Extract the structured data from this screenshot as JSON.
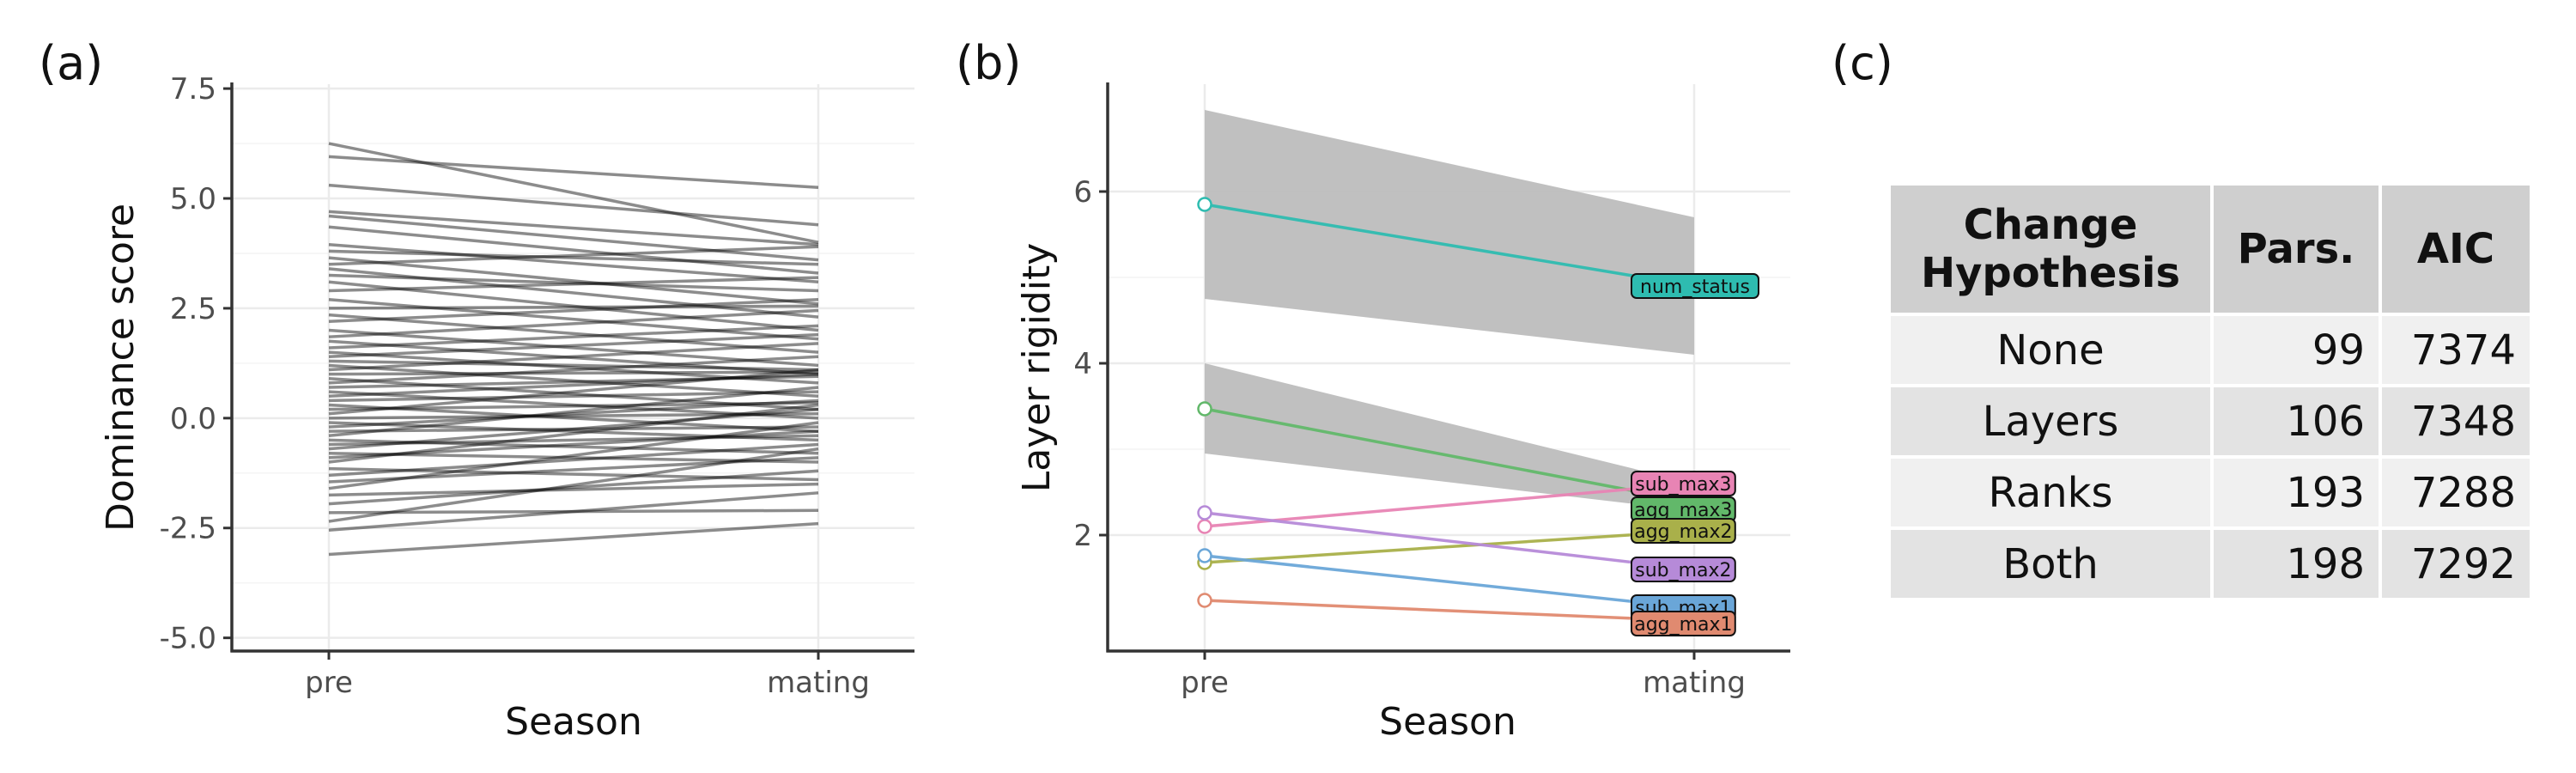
{
  "panel_labels": {
    "a": "(a)",
    "b": "(b)",
    "c": "(c)"
  },
  "chart_data": [
    {
      "type": "line",
      "panel": "(a)",
      "xlabel": "Season",
      "ylabel": "Dominance score",
      "categories": [
        "pre",
        "mating"
      ],
      "ylim": [
        -5.3,
        7.6
      ],
      "yticks": [
        -5.0,
        -2.5,
        0.0,
        2.5,
        5.0,
        7.5
      ],
      "ytick_labels": [
        "-5.0",
        "-2.5",
        "0.0",
        "2.5",
        "5.0",
        "7.5"
      ],
      "grid": true,
      "line_color": "#000000",
      "series": [
        {
          "values": [
            6.25,
            4.0
          ]
        },
        {
          "values": [
            5.95,
            5.25
          ]
        },
        {
          "values": [
            5.3,
            4.4
          ]
        },
        {
          "values": [
            4.7,
            3.95
          ]
        },
        {
          "values": [
            4.6,
            3.6
          ]
        },
        {
          "values": [
            4.35,
            3.3
          ]
        },
        {
          "values": [
            3.95,
            3.1
          ]
        },
        {
          "values": [
            3.8,
            3.5
          ]
        },
        {
          "values": [
            3.65,
            2.6
          ]
        },
        {
          "values": [
            3.5,
            3.9
          ]
        },
        {
          "values": [
            3.4,
            2.3
          ]
        },
        {
          "values": [
            3.25,
            2.9
          ]
        },
        {
          "values": [
            3.1,
            2.0
          ]
        },
        {
          "values": [
            2.9,
            3.2
          ]
        },
        {
          "values": [
            2.7,
            1.8
          ]
        },
        {
          "values": [
            2.5,
            2.55
          ]
        },
        {
          "values": [
            2.35,
            1.5
          ]
        },
        {
          "values": [
            2.2,
            2.7
          ]
        },
        {
          "values": [
            2.0,
            1.2
          ]
        },
        {
          "values": [
            1.85,
            2.45
          ]
        },
        {
          "values": [
            1.75,
            1.0
          ]
        },
        {
          "values": [
            1.6,
            2.1
          ]
        },
        {
          "values": [
            1.5,
            0.8
          ]
        },
        {
          "values": [
            1.4,
            1.9
          ]
        },
        {
          "values": [
            1.3,
            1.1
          ]
        },
        {
          "values": [
            1.2,
            0.5
          ]
        },
        {
          "values": [
            1.1,
            1.7
          ]
        },
        {
          "values": [
            1.0,
            1.05
          ]
        },
        {
          "values": [
            0.9,
            0.2
          ]
        },
        {
          "values": [
            0.8,
            1.4
          ]
        },
        {
          "values": [
            0.7,
            0.95
          ]
        },
        {
          "values": [
            0.6,
            0.0
          ]
        },
        {
          "values": [
            0.5,
            1.0
          ]
        },
        {
          "values": [
            0.4,
            0.6
          ]
        },
        {
          "values": [
            0.3,
            -0.3
          ]
        },
        {
          "values": [
            0.2,
            0.35
          ]
        },
        {
          "values": [
            0.1,
            1.1
          ]
        },
        {
          "values": [
            0.0,
            0.1
          ]
        },
        {
          "values": [
            -0.1,
            -0.5
          ]
        },
        {
          "values": [
            -0.2,
            0.4
          ]
        },
        {
          "values": [
            -0.3,
            -0.2
          ]
        },
        {
          "values": [
            -0.4,
            0.7
          ]
        },
        {
          "values": [
            -0.5,
            -0.8
          ]
        },
        {
          "values": [
            -0.6,
            -0.4
          ]
        },
        {
          "values": [
            -0.7,
            0.2
          ]
        },
        {
          "values": [
            -0.8,
            -1.0
          ]
        },
        {
          "values": [
            -0.9,
            -0.3
          ]
        },
        {
          "values": [
            -1.0,
            0.3
          ]
        },
        {
          "values": [
            -1.15,
            -1.4
          ]
        },
        {
          "values": [
            -1.3,
            -0.6
          ]
        },
        {
          "values": [
            -1.45,
            -0.9
          ]
        },
        {
          "values": [
            -1.6,
            -0.1
          ]
        },
        {
          "values": [
            -1.75,
            -1.5
          ]
        },
        {
          "values": [
            -1.95,
            -1.2
          ]
        },
        {
          "values": [
            -2.15,
            -2.1
          ]
        },
        {
          "values": [
            -2.35,
            -0.7
          ]
        },
        {
          "values": [
            -2.55,
            -1.7
          ]
        },
        {
          "values": [
            -3.1,
            -2.4
          ]
        }
      ]
    },
    {
      "type": "line",
      "panel": "(b)",
      "xlabel": "Season",
      "ylabel": "Layer rigidity",
      "categories": [
        "pre",
        "mating"
      ],
      "ylim": [
        0.65,
        7.25
      ],
      "yticks": [
        2,
        4,
        6
      ],
      "ytick_labels": [
        "2",
        "4",
        "6"
      ],
      "grid": true,
      "bands": [
        {
          "lower": [
            4.75,
            4.1
          ],
          "upper": [
            6.95,
            5.7
          ],
          "color": "#bdbdbd"
        },
        {
          "lower": [
            2.95,
            2.28
          ],
          "upper": [
            4.0,
            2.6
          ],
          "color": "#bdbdbd"
        }
      ],
      "series": [
        {
          "name": "num_status",
          "values": [
            5.85,
            4.9
          ],
          "color": "#2ebcb0",
          "label_y": 4.9
        },
        {
          "name": "agg_max3",
          "values": [
            3.47,
            2.38
          ],
          "color": "#62b86a",
          "label_y": 2.3
        },
        {
          "name": "sub_max3",
          "values": [
            2.1,
            2.6
          ],
          "color": "#e884b4",
          "label_y": 2.6
        },
        {
          "name": "agg_max2",
          "values": [
            1.68,
            2.05
          ],
          "color": "#a9b04a",
          "label_y": 2.05
        },
        {
          "name": "sub_max2",
          "values": [
            2.26,
            1.6
          ],
          "color": "#b68ad8",
          "label_y": 1.6
        },
        {
          "name": "sub_max1",
          "values": [
            1.76,
            1.15
          ],
          "color": "#6aa6d8",
          "label_y": 1.16
        },
        {
          "name": "agg_max1",
          "values": [
            1.24,
            1.0
          ],
          "color": "#e08a70",
          "label_y": 0.97
        }
      ]
    }
  ],
  "table": {
    "panel": "(c)",
    "header": [
      [
        "Change",
        "Hypothesis"
      ],
      "Pars.",
      "AIC"
    ],
    "rows": [
      [
        "None",
        "99",
        "7374"
      ],
      [
        "Layers",
        "106",
        "7348"
      ],
      [
        "Ranks",
        "193",
        "7288"
      ],
      [
        "Both",
        "198",
        "7292"
      ]
    ]
  }
}
